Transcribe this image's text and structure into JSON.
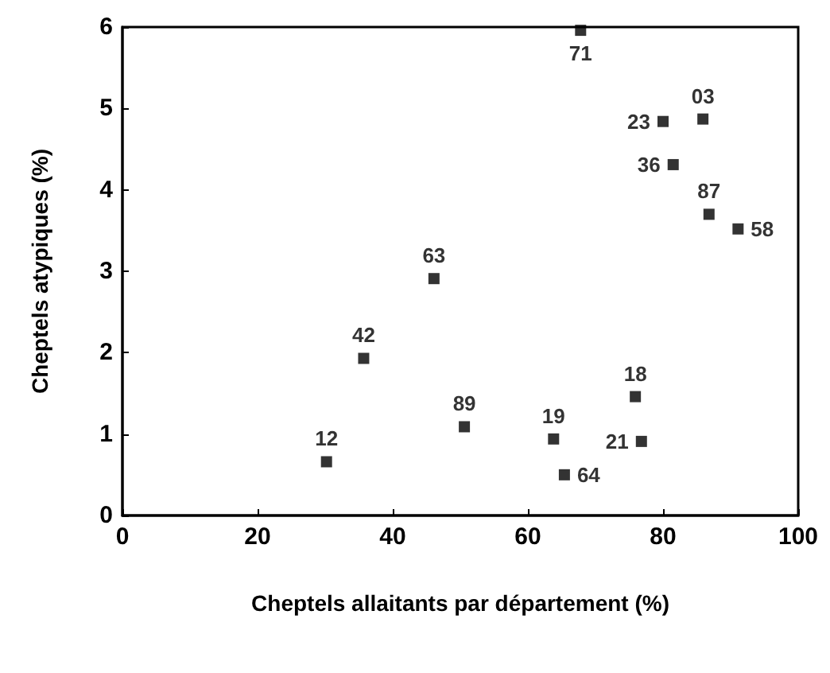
{
  "chart_data": {
    "type": "scatter",
    "xlabel": "Cheptels allaitants par département (%)",
    "ylabel": "Cheptels atypiques (%)",
    "x": [
      30.2,
      35.7,
      46.1,
      50.6,
      63.8,
      65.4,
      67.8,
      75.9,
      76.8,
      80.0,
      81.5,
      85.9,
      86.8,
      91.1
    ],
    "values": [
      0.66,
      1.93,
      2.91,
      1.09,
      0.94,
      0.5,
      5.96,
      1.46,
      0.91,
      4.84,
      4.31,
      4.87,
      3.7,
      3.52
    ],
    "color": "#000000",
    "marker": "square",
    "xlim": [
      0,
      100
    ],
    "xticks": [
      0,
      20,
      40,
      60,
      80,
      100
    ],
    "ylim": [
      0,
      6
    ],
    "yticks": [
      0,
      1,
      2,
      3,
      4,
      5,
      6
    ],
    "grid": false,
    "annotations": [
      {
        "text": "12",
        "x": 30.2,
        "y": 0.66
      },
      {
        "text": "42",
        "x": 35.7,
        "y": 1.93
      },
      {
        "text": "63",
        "x": 46.1,
        "y": 2.91
      },
      {
        "text": "89",
        "x": 50.6,
        "y": 1.09
      },
      {
        "text": "19",
        "x": 63.8,
        "y": 0.94
      },
      {
        "text": "64",
        "x": 65.4,
        "y": 0.5
      },
      {
        "text": "71",
        "x": 67.8,
        "y": 5.96
      },
      {
        "text": "18",
        "x": 75.9,
        "y": 1.46
      },
      {
        "text": "21",
        "x": 76.8,
        "y": 0.91
      },
      {
        "text": "23",
        "x": 80.0,
        "y": 4.84
      },
      {
        "text": "36",
        "x": 81.5,
        "y": 4.31
      },
      {
        "text": "03",
        "x": 85.9,
        "y": 4.87
      },
      {
        "text": "87",
        "x": 86.8,
        "y": 3.7
      },
      {
        "text": "58",
        "x": 91.1,
        "y": 3.52
      }
    ]
  }
}
